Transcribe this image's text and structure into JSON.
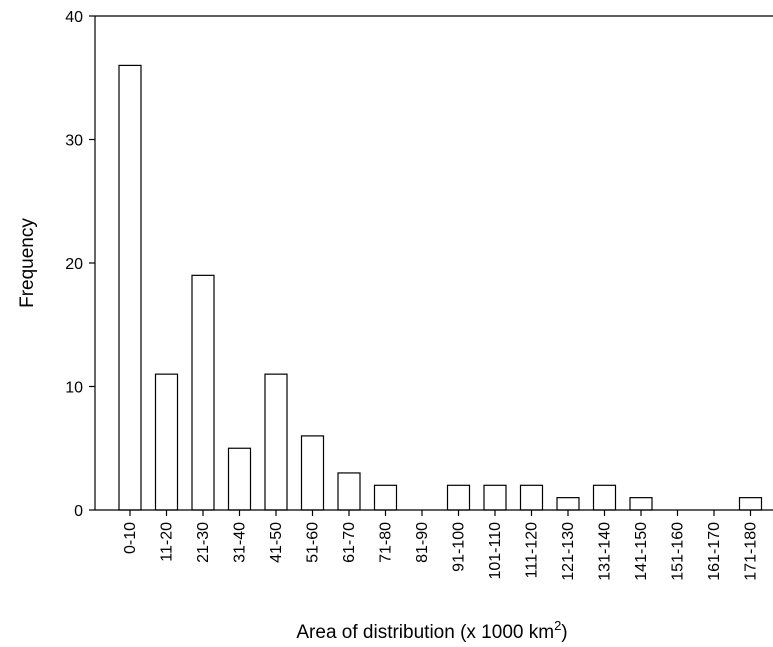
{
  "chart_data": {
    "type": "bar",
    "categories": [
      "0-10",
      "11-20",
      "21-30",
      "31-40",
      "41-50",
      "51-60",
      "61-70",
      "71-80",
      "81-90",
      "91-100",
      "101-110",
      "111-120",
      "121-130",
      "131-140",
      "141-150",
      "151-160",
      "161-170",
      "171-180"
    ],
    "values": [
      36,
      11,
      19,
      5,
      11,
      6,
      3,
      2,
      0,
      2,
      2,
      2,
      1,
      2,
      1,
      0,
      0,
      1
    ],
    "ylim": [
      0,
      40
    ],
    "yticks": [
      0,
      10,
      20,
      30,
      40
    ],
    "xlabel": "Area of distribution (x 1000 km",
    "xlabel_superscript": "2",
    "xlabel_suffix": ")",
    "ylabel": "Frequency",
    "grid": false
  }
}
